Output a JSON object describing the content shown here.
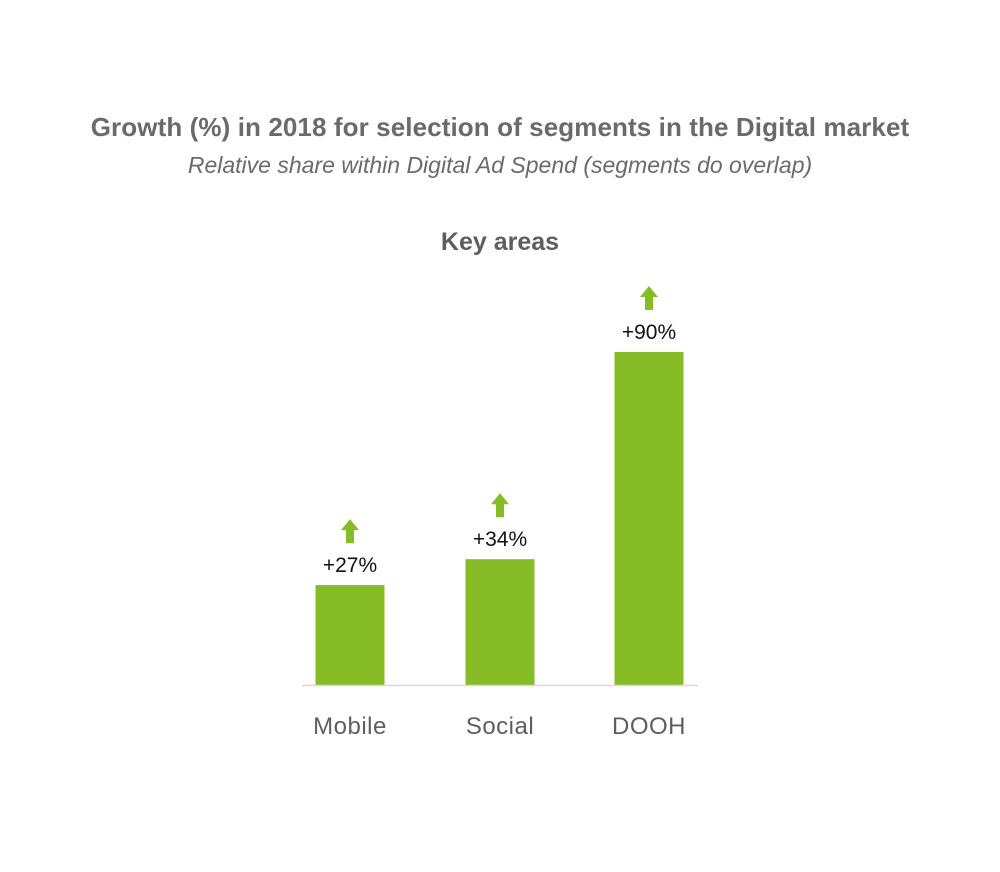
{
  "title": "Growth (%) in 2018 for selection of segments in the Digital market",
  "subtitle": "Relative share within Digital Ad Spend (segments do overlap)",
  "chart_data": {
    "type": "bar",
    "title": "Key areas",
    "categories": [
      "Mobile",
      "Social",
      "DOOH"
    ],
    "values": [
      27,
      34,
      90
    ],
    "data_labels": [
      "+27%",
      "+34%",
      "+90%"
    ],
    "xlabel": "",
    "ylabel": "",
    "ylim": [
      0,
      90
    ],
    "grid": false,
    "legend": "none",
    "indicator_icon": "up-arrow-icon",
    "colors": {
      "bar": "#86bc25",
      "arrow": "#86bc25",
      "baseline": "#d9d9d9",
      "label": "#111111",
      "category": "#5e5e5e"
    }
  }
}
